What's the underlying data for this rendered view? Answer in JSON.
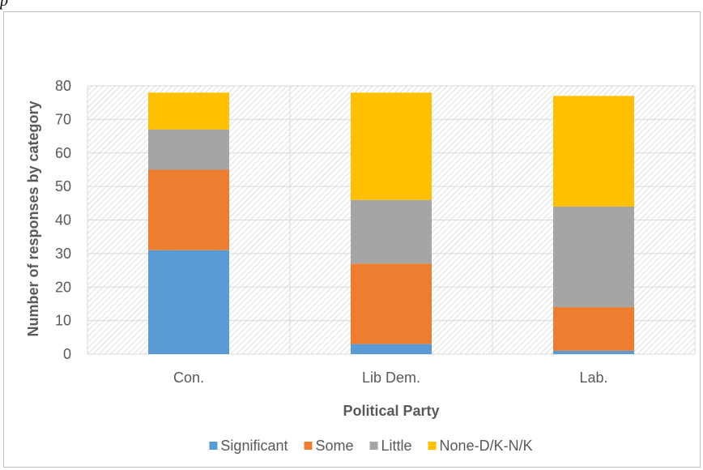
{
  "header_fragment": "p",
  "chart_data": {
    "type": "bar",
    "stacked": true,
    "categories": [
      "Con.",
      "Lib Dem.",
      "Lab."
    ],
    "series": [
      {
        "name": "Significant",
        "color": "#5b9bd5",
        "values": [
          31,
          3,
          1
        ]
      },
      {
        "name": "Some",
        "color": "#ed7d31",
        "values": [
          24,
          24,
          13
        ]
      },
      {
        "name": "Little",
        "color": "#a5a5a5",
        "values": [
          12,
          19,
          30
        ]
      },
      {
        "name": "None-D/K-N/K",
        "color": "#ffc000",
        "values": [
          11,
          32,
          33
        ]
      }
    ],
    "xlabel": "Political Party",
    "ylabel": "Number of responses by category",
    "ylim": [
      0,
      80
    ],
    "yticks": [
      0,
      10,
      20,
      30,
      40,
      50,
      60,
      70,
      80
    ],
    "grid": true,
    "legend_position": "bottom"
  }
}
